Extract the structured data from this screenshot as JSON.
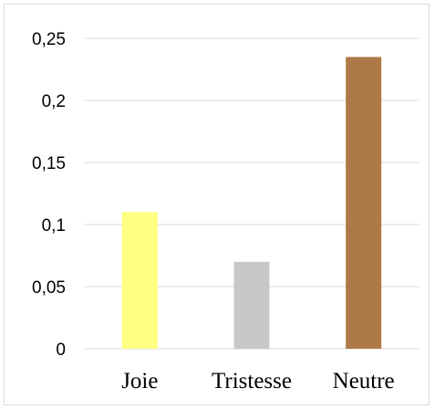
{
  "chart_data": {
    "type": "bar",
    "categories": [
      "Joie",
      "Tristesse",
      "Neutre"
    ],
    "values": [
      0.11,
      0.07,
      0.235
    ],
    "colors": [
      "#ffff80",
      "#c8c8c8",
      "#ad7a47"
    ],
    "ylim": [
      0,
      0.25
    ],
    "yticks": [
      0,
      0.05,
      0.1,
      0.15,
      0.2,
      0.25
    ],
    "ytick_labels": [
      "0",
      "0,05",
      "0,1",
      "0,15",
      "0,2",
      "0,25"
    ],
    "grid": true,
    "gridline_color": "#d9d9d9",
    "legend": "none"
  }
}
